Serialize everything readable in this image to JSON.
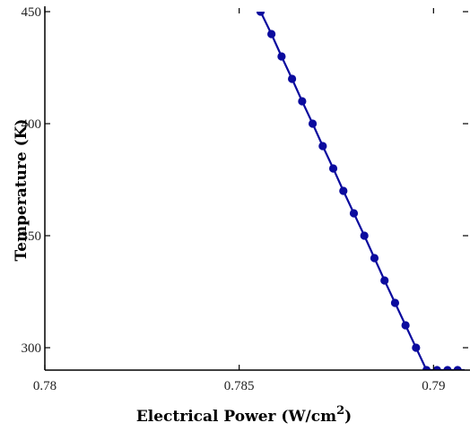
{
  "chart_data": {
    "type": "line",
    "title": "",
    "xlabel": "Electrical Power (W/cm",
    "xlabel_superscript": "2",
    "xlabel_suffix": ")",
    "ylabel": "Temperature (K)",
    "xlim": [
      0.78,
      0.7908
    ],
    "ylim": [
      290,
      450
    ],
    "xticks": [
      0.78,
      0.785,
      0.79
    ],
    "xtick_labels": [
      "0.78",
      "0.785",
      "0.79"
    ],
    "yticks": [
      300,
      350,
      400,
      450
    ],
    "ytick_labels": [
      "300",
      "350",
      "400",
      "450"
    ],
    "grid": false,
    "legend": false,
    "colors": {
      "series": "#0b0b9e",
      "axis": "#000000"
    },
    "series": [
      {
        "x": [
          0.78555,
          0.78583,
          0.78609,
          0.78636,
          0.78662,
          0.78689,
          0.78715,
          0.78742,
          0.78768,
          0.78795,
          0.78822,
          0.78848,
          0.78874,
          0.78901,
          0.78928,
          0.78955,
          0.78982,
          0.79009,
          0.79036,
          0.79062
        ],
        "y": [
          450,
          440,
          430,
          420,
          410,
          400,
          390,
          380,
          370,
          360,
          350,
          340,
          330,
          320,
          310,
          300,
          290,
          290,
          290,
          290
        ],
        "marker": "circle"
      }
    ]
  }
}
